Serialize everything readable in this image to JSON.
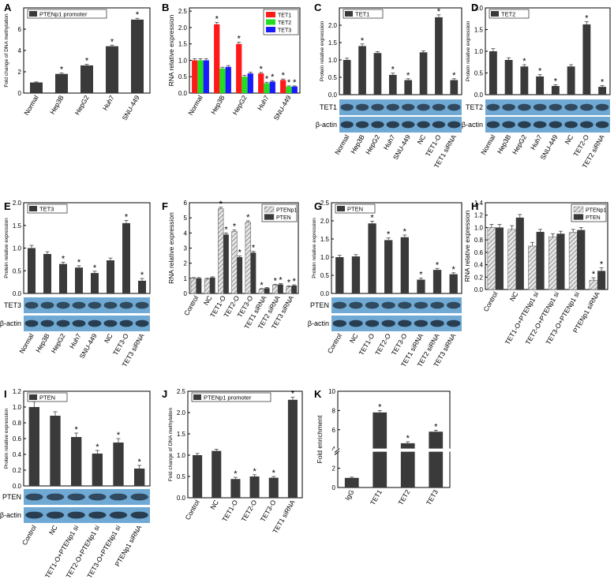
{
  "figure": {
    "colors": {
      "dark": "#3a3a3a",
      "red": "#ff1a1a",
      "green": "#22dd22",
      "blue": "#1a1aff",
      "hatch": "#9a9a9a",
      "blot": "#6fa9d4"
    }
  },
  "chart_data": [
    {
      "id": "A",
      "panel_label": "A",
      "type": "bar",
      "title": "",
      "ylabel": "Fold change of DNA methylation",
      "ylim": [
        0,
        8
      ],
      "yticks": [
        0,
        2,
        4,
        6
      ],
      "tick_labels": [
        "0",
        "2",
        "4",
        "6"
      ],
      "categories": [
        "Normal",
        "Hep3B",
        "HepG2",
        "Huh7",
        "SNU-449"
      ],
      "series": [
        {
          "name": "PTENp1 promoter",
          "style": "dark",
          "values": [
            1.0,
            1.8,
            2.6,
            4.4,
            6.9
          ],
          "errors": [
            0.05,
            0.08,
            0.1,
            0.1,
            0.12
          ],
          "stars": [
            false,
            true,
            true,
            true,
            true
          ]
        }
      ],
      "legend": [
        "PTENp1 promoter"
      ]
    },
    {
      "id": "B",
      "panel_label": "B",
      "type": "bar",
      "title": "",
      "ylabel": "RNA relative expression",
      "ylim": [
        0.0,
        2.6
      ],
      "yticks": [
        0.0,
        0.5,
        1.0,
        1.5,
        2.0,
        2.5
      ],
      "tick_labels": [
        "0.0",
        "0.5",
        "1.0",
        "1.5",
        "2.0",
        "2.5"
      ],
      "categories": [
        "Normal",
        "Hep3B",
        "HepG2",
        "Huh7",
        "SNU-449"
      ],
      "series": [
        {
          "name": "TET1",
          "style": "red",
          "values": [
            1.0,
            2.1,
            1.5,
            0.6,
            0.4
          ],
          "errors": [
            0.05,
            0.06,
            0.05,
            0.03,
            0.03
          ],
          "stars": [
            false,
            true,
            true,
            true,
            true
          ]
        },
        {
          "name": "TET2",
          "style": "green",
          "values": [
            1.0,
            0.75,
            0.5,
            0.3,
            0.2
          ],
          "errors": [
            0.05,
            0.04,
            0.04,
            0.03,
            0.02
          ],
          "stars": [
            false,
            false,
            false,
            true,
            true
          ]
        },
        {
          "name": "TET3",
          "style": "blue",
          "values": [
            1.0,
            0.8,
            0.6,
            0.35,
            0.2
          ],
          "errors": [
            0.05,
            0.04,
            0.04,
            0.03,
            0.02
          ],
          "stars": [
            false,
            false,
            false,
            true,
            true
          ]
        }
      ],
      "legend": [
        "TET1",
        "TET2",
        "TET3"
      ]
    },
    {
      "id": "C",
      "panel_label": "C",
      "type": "bar",
      "title": "",
      "ylabel": "Protein relative expression",
      "ylim": [
        0.0,
        2.5
      ],
      "yticks": [
        0.0,
        0.5,
        1.0,
        1.5,
        2.0
      ],
      "tick_labels": [
        "0.0",
        "0.5",
        "1.0",
        "1.5",
        "2.0"
      ],
      "categories": [
        "Normal",
        "Hep3B",
        "HepG2",
        "Huh7",
        "SNU-449",
        "NC",
        "TET1-O",
        "TET1 siRNA"
      ],
      "series": [
        {
          "name": "TET1",
          "style": "dark",
          "values": [
            1.0,
            1.4,
            1.2,
            0.57,
            0.42,
            1.22,
            2.23,
            0.42
          ],
          "errors": [
            0.05,
            0.06,
            0.04,
            0.05,
            0.04,
            0.04,
            0.07,
            0.04
          ],
          "stars": [
            false,
            true,
            false,
            true,
            true,
            false,
            true,
            true
          ]
        }
      ],
      "legend": [
        "TET1"
      ],
      "blot_labels": [
        "TET1",
        "β-actin"
      ]
    },
    {
      "id": "D",
      "panel_label": "D",
      "type": "bar",
      "title": "",
      "ylabel": "Protein relative expression",
      "ylim": [
        0.0,
        2.0
      ],
      "yticks": [
        0.0,
        0.5,
        1.0,
        1.5,
        2.0
      ],
      "tick_labels": [
        "0.0",
        "0.5",
        "1.0",
        "1.5",
        "2.0"
      ],
      "categories": [
        "Normal",
        "Hep3B",
        "HepG2",
        "Huh7",
        "SNU-449",
        "NC",
        "TET2-O",
        "TET2 siRNA"
      ],
      "series": [
        {
          "name": "TET2",
          "style": "dark",
          "values": [
            1.0,
            0.8,
            0.65,
            0.42,
            0.2,
            0.65,
            1.62,
            0.18
          ],
          "errors": [
            0.06,
            0.05,
            0.04,
            0.04,
            0.03,
            0.04,
            0.06,
            0.03
          ],
          "stars": [
            false,
            false,
            true,
            true,
            true,
            false,
            true,
            true
          ]
        }
      ],
      "legend": [
        "TET2"
      ],
      "blot_labels": [
        "TET2",
        "β-actin"
      ]
    },
    {
      "id": "E",
      "panel_label": "E",
      "type": "bar",
      "title": "",
      "ylabel": "Protein relative expression",
      "ylim": [
        0.0,
        2.0
      ],
      "yticks": [
        0.0,
        0.5,
        1.0,
        1.5,
        2.0
      ],
      "tick_labels": [
        "0.0",
        "0.5",
        "1.0",
        "1.5",
        "2.0"
      ],
      "categories": [
        "Normal",
        "Hep3B",
        "HepG2",
        "Huh7",
        "SNU-449",
        "NC",
        "TET3-O",
        "TET3 siRNA"
      ],
      "series": [
        {
          "name": "TET3",
          "style": "dark",
          "values": [
            1.0,
            0.87,
            0.65,
            0.57,
            0.45,
            0.73,
            1.55,
            0.28
          ],
          "errors": [
            0.06,
            0.05,
            0.04,
            0.04,
            0.04,
            0.05,
            0.06,
            0.05
          ],
          "stars": [
            false,
            false,
            true,
            true,
            true,
            false,
            true,
            true
          ]
        }
      ],
      "legend": [
        "TET3"
      ],
      "blot_labels": [
        "TET3",
        "β-actin"
      ]
    },
    {
      "id": "F",
      "panel_label": "F",
      "type": "bar",
      "title": "",
      "ylabel": "RNA relative expression",
      "ylim": [
        0,
        6
      ],
      "yticks": [
        0,
        1,
        2,
        3,
        4,
        5,
        6
      ],
      "tick_labels": [
        "0",
        "1",
        "2",
        "3",
        "4",
        "5",
        "6"
      ],
      "categories": [
        "Control",
        "NC",
        "TET1-O",
        "TET2-O",
        "TET3-O",
        "TET1 siRNA",
        "TET2 siRNA",
        "TET3 siRNA"
      ],
      "series": [
        {
          "name": "PTENp1",
          "style": "hatch",
          "values": [
            1.0,
            0.95,
            5.6,
            4.1,
            4.7,
            0.28,
            0.55,
            0.45
          ],
          "errors": [
            0.05,
            0.05,
            0.1,
            0.1,
            0.1,
            0.04,
            0.05,
            0.05
          ],
          "stars": [
            false,
            false,
            true,
            true,
            true,
            true,
            true,
            true
          ]
        },
        {
          "name": "PTEN",
          "style": "dark",
          "values": [
            1.0,
            1.05,
            3.9,
            2.4,
            2.7,
            0.35,
            0.6,
            0.52
          ],
          "errors": [
            0.05,
            0.05,
            0.1,
            0.08,
            0.08,
            0.04,
            0.05,
            0.05
          ],
          "stars": [
            false,
            false,
            true,
            true,
            true,
            false,
            true,
            true
          ]
        }
      ],
      "legend": [
        "PTENp1",
        "PTEN"
      ]
    },
    {
      "id": "G",
      "panel_label": "G",
      "type": "bar",
      "title": "",
      "ylabel": "Protein relative expression",
      "ylim": [
        0.0,
        2.5
      ],
      "yticks": [
        0.0,
        0.5,
        1.0,
        1.5,
        2.0,
        2.5
      ],
      "tick_labels": [
        "0.0",
        "0.5",
        "1.0",
        "1.5",
        "2.0",
        "2.5"
      ],
      "categories": [
        "Control",
        "NC",
        "TET1-O",
        "TET2-O",
        "TET3-O",
        "TET1 siRNA",
        "TET2 siRNA",
        "TET3 siRNA"
      ],
      "series": [
        {
          "name": "PTEN",
          "style": "dark",
          "values": [
            1.0,
            1.02,
            1.93,
            1.47,
            1.55,
            0.38,
            0.65,
            0.53
          ],
          "errors": [
            0.05,
            0.05,
            0.06,
            0.06,
            0.06,
            0.04,
            0.04,
            0.04
          ],
          "stars": [
            false,
            false,
            true,
            true,
            true,
            true,
            true,
            true
          ]
        }
      ],
      "legend": [
        "PTEN"
      ],
      "blot_labels": [
        "PTEN",
        "β-actin"
      ]
    },
    {
      "id": "H",
      "panel_label": "H",
      "type": "bar",
      "title": "",
      "ylabel": "RNA relative expression",
      "ylim": [
        0.0,
        1.4
      ],
      "yticks": [
        0.0,
        0.2,
        0.4,
        0.6,
        0.8,
        1.0,
        1.2,
        1.4
      ],
      "tick_labels": [
        "0.0",
        "0.2",
        "0.4",
        "0.6",
        "0.8",
        "1.0",
        "1.2",
        "1.4"
      ],
      "categories": [
        "Control",
        "NC",
        "TET1-O+PTENp1 si",
        "TET2-O+PTENp1 si",
        "TET3-O+PTENp1 si",
        "PTENp1 siRNA"
      ],
      "series": [
        {
          "name": "PTENp1",
          "style": "hatch",
          "values": [
            1.0,
            0.97,
            0.7,
            0.85,
            0.92,
            0.15
          ],
          "errors": [
            0.05,
            0.06,
            0.06,
            0.05,
            0.05,
            0.04
          ],
          "stars": [
            false,
            false,
            false,
            false,
            false,
            true
          ]
        },
        {
          "name": "PTEN",
          "style": "dark",
          "values": [
            1.0,
            1.16,
            0.93,
            0.9,
            0.96,
            0.3
          ],
          "errors": [
            0.05,
            0.05,
            0.04,
            0.04,
            0.04,
            0.05
          ],
          "stars": [
            false,
            false,
            false,
            false,
            false,
            true
          ]
        }
      ],
      "legend": [
        "PTENp1",
        "PTEN"
      ]
    },
    {
      "id": "I",
      "panel_label": "I",
      "type": "bar",
      "title": "",
      "ylabel": "Protein relative expression",
      "ylim": [
        0.0,
        1.2
      ],
      "yticks": [
        0.0,
        0.2,
        0.4,
        0.6,
        0.8,
        1.0,
        1.2
      ],
      "tick_labels": [
        "0.0",
        "0.2",
        "0.4",
        "0.6",
        "0.8",
        "1.0",
        "1.2"
      ],
      "categories": [
        "Control",
        "NC",
        "TET1-O+PTENp1 si",
        "TET2-O+PTENp1 si",
        "TET3-O+PTENp1 si",
        "PTENp1 siRNA"
      ],
      "series": [
        {
          "name": "PTEN",
          "style": "dark",
          "values": [
            1.0,
            0.89,
            0.62,
            0.41,
            0.55,
            0.22
          ],
          "errors": [
            0.07,
            0.05,
            0.05,
            0.04,
            0.05,
            0.04
          ],
          "stars": [
            false,
            false,
            true,
            true,
            true,
            true
          ]
        }
      ],
      "legend": [
        "PTEN"
      ],
      "blot_labels": [
        "PTEN",
        "β-actin"
      ]
    },
    {
      "id": "J",
      "panel_label": "J",
      "type": "bar",
      "title": "",
      "ylabel": "Fold change of DNA methylation",
      "ylim": [
        0.0,
        2.5
      ],
      "yticks": [
        0.0,
        0.5,
        1.0,
        1.5,
        2.0,
        2.5
      ],
      "tick_labels": [
        "0.0",
        "0.5",
        "1.0",
        "1.5",
        "2.0",
        "2.5"
      ],
      "categories": [
        "Control",
        "NC",
        "TET1-O",
        "TET2-O",
        "TET3-O",
        "TET1 siRNA"
      ],
      "series": [
        {
          "name": "PTENp1 promoter",
          "style": "dark",
          "values": [
            1.0,
            1.1,
            0.44,
            0.5,
            0.47,
            2.3
          ],
          "errors": [
            0.04,
            0.04,
            0.04,
            0.04,
            0.03,
            0.06
          ],
          "stars": [
            false,
            false,
            true,
            true,
            true,
            true
          ]
        }
      ],
      "legend": [
        "PTENp1 promoter"
      ]
    },
    {
      "id": "K",
      "panel_label": "K",
      "type": "bar",
      "title": "",
      "ylabel": "Fold enrichment",
      "ylim": [
        0,
        10
      ],
      "yticks": [
        0,
        2,
        4,
        6,
        8,
        10
      ],
      "tick_labels": [
        "0",
        "2",
        "4",
        "6",
        "8",
        "10"
      ],
      "axis_break": true,
      "categories": [
        "IgG",
        "TET1",
        "TET2",
        "TET3"
      ],
      "series": [
        {
          "name": "Fold enrichment",
          "style": "dark",
          "values": [
            1.0,
            7.8,
            4.6,
            5.8
          ],
          "errors": [
            0.08,
            0.2,
            0.15,
            0.15
          ],
          "stars": [
            false,
            true,
            true,
            true
          ]
        }
      ],
      "legend": []
    }
  ]
}
